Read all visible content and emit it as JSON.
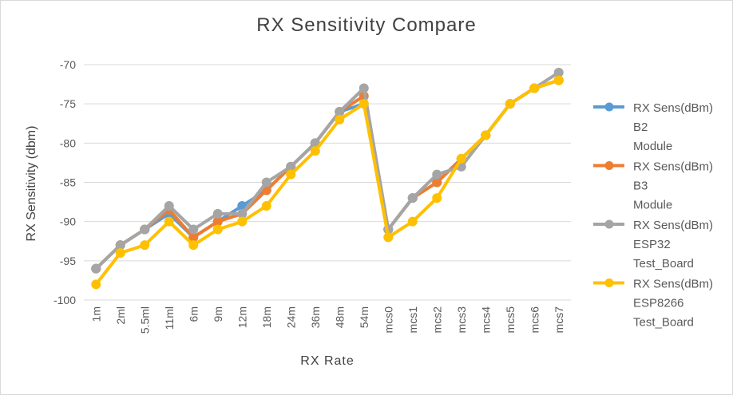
{
  "chart_data": {
    "type": "line",
    "title": "RX Sensitivity Compare",
    "xlabel": "RX Rate",
    "ylabel": "RX Sensitivity (dbm)",
    "ylim": [
      -100,
      -70
    ],
    "yticks": [
      -70,
      -75,
      -80,
      -85,
      -90,
      -95,
      -100
    ],
    "grid": true,
    "legend_position": "right",
    "categories": [
      "1m",
      "2ml",
      "5.5ml",
      "11ml",
      "6m",
      "9m",
      "12m",
      "18m",
      "24m",
      "36m",
      "48m",
      "54m",
      "mcs0",
      "mcs1",
      "mcs2",
      "mcs3",
      "mcs4",
      "mcs5",
      "mcs6",
      "mcs7"
    ],
    "series": [
      {
        "name": "RX Sens(dBm) B2 Module",
        "legend_lines": [
          "RX Sens(dBm)",
          "B2",
          "Module"
        ],
        "color": "#5b9bd5",
        "values": [
          -96,
          -93,
          -91,
          -89,
          -92,
          -90,
          -88,
          -86,
          -83,
          -80,
          -76,
          -75,
          -91,
          -87,
          -85,
          -82,
          -79,
          -75,
          -73,
          -72
        ]
      },
      {
        "name": "RX Sens(dBm) B3 Module",
        "legend_lines": [
          "RX Sens(dBm)",
          "B3",
          "Module"
        ],
        "color": "#ed7d31",
        "values": [
          -96,
          -93,
          -91,
          -88.5,
          -92,
          -90,
          -89,
          -86,
          -83,
          -80,
          -76,
          -74,
          -91,
          -87,
          -85,
          -82,
          -79,
          -75,
          -73,
          -72
        ]
      },
      {
        "name": "RX Sens(dBm) ESP32 Test_Board",
        "legend_lines": [
          "RX Sens(dBm)",
          "ESP32",
          "Test_Board"
        ],
        "color": "#a5a5a5",
        "values": [
          -96,
          -93,
          -91,
          -88,
          -91,
          -89,
          -89,
          -85,
          -83,
          -80,
          -76,
          -73,
          -91,
          -87,
          -84,
          -83,
          -79,
          -75,
          -73,
          -71
        ]
      },
      {
        "name": "RX Sens(dBm) ESP8266 Test_Board",
        "legend_lines": [
          "RX Sens(dBm)",
          "ESP8266",
          "Test_Board"
        ],
        "color": "#ffc000",
        "values": [
          -98,
          -94,
          -93,
          -90,
          -93,
          -91,
          -90,
          -88,
          -84,
          -81,
          -77,
          -75,
          -92,
          -90,
          -87,
          -82,
          -79,
          -75,
          -73,
          -72
        ]
      }
    ]
  }
}
